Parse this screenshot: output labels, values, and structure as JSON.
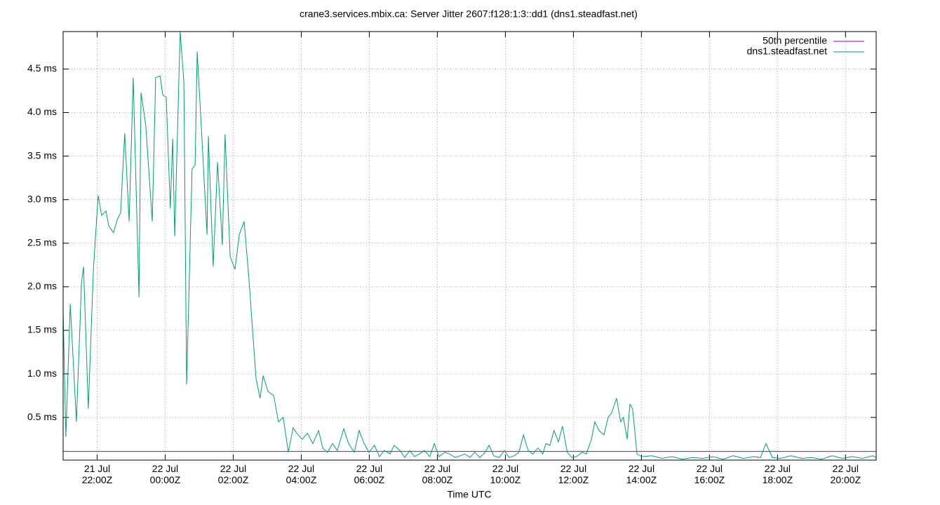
{
  "chart_data": {
    "type": "line",
    "title": "crane3.services.mbix.ca: Server Jitter 2607:f128:1:3::dd1 (dns1.steadfast.net)",
    "xlabel": "Time UTC",
    "xlim": [
      21.0,
      44.9
    ],
    "ylim": [
      0.01,
      4.93
    ],
    "grid": true,
    "legend": "top-right",
    "xticks": [
      {
        "value": 22,
        "label": "21 Jul\n22:00Z"
      },
      {
        "value": 24,
        "label": "22 Jul\n00:00Z"
      },
      {
        "value": 26,
        "label": "22 Jul\n02:00Z"
      },
      {
        "value": 28,
        "label": "22 Jul\n04:00Z"
      },
      {
        "value": 30,
        "label": "22 Jul\n06:00Z"
      },
      {
        "value": 32,
        "label": "22 Jul\n08:00Z"
      },
      {
        "value": 34,
        "label": "22 Jul\n10:00Z"
      },
      {
        "value": 36,
        "label": "22 Jul\n12:00Z"
      },
      {
        "value": 38,
        "label": "22 Jul\n14:00Z"
      },
      {
        "value": 40,
        "label": "22 Jul\n16:00Z"
      },
      {
        "value": 42,
        "label": "22 Jul\n18:00Z"
      },
      {
        "value": 44,
        "label": "22 Jul\n20:00Z"
      }
    ],
    "yticks": [
      {
        "value": 0.5,
        "label": "0.5 ms"
      },
      {
        "value": 1.0,
        "label": "1.0 ms"
      },
      {
        "value": 1.5,
        "label": "1.5 ms"
      },
      {
        "value": 2.0,
        "label": "2.0 ms"
      },
      {
        "value": 2.5,
        "label": "2.5 ms"
      },
      {
        "value": 3.0,
        "label": "3.0 ms"
      },
      {
        "value": 3.5,
        "label": "3.5 ms"
      },
      {
        "value": 4.0,
        "label": "4.0 ms"
      },
      {
        "value": 4.5,
        "label": "4.5 ms"
      }
    ],
    "series": [
      {
        "name": "50th percentile",
        "color": "#9400d3",
        "value": 0.11
      },
      {
        "name": "dns1.steadfast.net",
        "color": "#009e73",
        "x": [
          21.0,
          21.08,
          21.21,
          21.39,
          21.54,
          21.6,
          21.74,
          21.89,
          22.03,
          22.13,
          22.26,
          22.34,
          22.48,
          22.59,
          22.69,
          22.81,
          22.94,
          23.06,
          23.23,
          23.29,
          23.43,
          23.62,
          23.72,
          23.85,
          23.93,
          24.03,
          24.15,
          24.22,
          24.28,
          24.44,
          24.55,
          24.63,
          24.79,
          24.88,
          24.94,
          25.06,
          25.23,
          25.27,
          25.41,
          25.54,
          25.68,
          25.76,
          25.91,
          26.05,
          26.18,
          26.32,
          26.46,
          26.67,
          26.79,
          26.88,
          27.02,
          27.19,
          27.33,
          27.47,
          27.62,
          27.76,
          27.91,
          28.03,
          28.18,
          28.34,
          28.51,
          28.63,
          28.77,
          28.92,
          29.06,
          29.25,
          29.39,
          29.56,
          29.7,
          29.85,
          29.99,
          30.15,
          30.3,
          30.44,
          30.61,
          30.73,
          30.9,
          31.04,
          31.19,
          31.33,
          31.47,
          31.62,
          31.78,
          31.91,
          32.05,
          32.22,
          32.36,
          32.53,
          32.67,
          32.81,
          32.96,
          33.1,
          33.25,
          33.41,
          33.52,
          33.66,
          33.82,
          33.97,
          34.11,
          34.26,
          34.4,
          34.53,
          34.67,
          34.81,
          34.96,
          35.1,
          35.19,
          35.31,
          35.43,
          35.56,
          35.68,
          35.82,
          35.95,
          36.09,
          36.26,
          36.38,
          36.53,
          36.63,
          36.75,
          36.9,
          37.02,
          37.12,
          37.27,
          37.39,
          37.47,
          37.58,
          37.66,
          37.74,
          37.87,
          38.01,
          38.3,
          38.6,
          38.9,
          39.2,
          39.5,
          39.8,
          40.1,
          40.4,
          40.7,
          41.0,
          41.3,
          41.5,
          41.66,
          41.85,
          42.1,
          42.4,
          42.7,
          43.0,
          43.3,
          43.6,
          43.9,
          44.2,
          44.5,
          44.8,
          44.9
        ],
        "values": [
          1.72,
          0.28,
          1.8,
          0.45,
          2.05,
          2.23,
          0.6,
          2.2,
          3.05,
          2.82,
          2.87,
          2.7,
          2.62,
          2.77,
          2.85,
          3.76,
          2.75,
          4.4,
          1.88,
          4.23,
          3.85,
          2.75,
          4.4,
          4.42,
          4.2,
          4.18,
          2.9,
          3.7,
          2.58,
          4.93,
          4.35,
          0.88,
          3.35,
          3.4,
          4.7,
          3.85,
          2.6,
          3.73,
          2.23,
          3.43,
          2.48,
          3.75,
          2.35,
          2.2,
          2.6,
          2.75,
          2.1,
          0.95,
          0.72,
          0.98,
          0.8,
          0.75,
          0.45,
          0.5,
          0.1,
          0.38,
          0.3,
          0.25,
          0.32,
          0.2,
          0.35,
          0.15,
          0.1,
          0.2,
          0.12,
          0.37,
          0.2,
          0.1,
          0.35,
          0.2,
          0.1,
          0.18,
          0.05,
          0.12,
          0.08,
          0.18,
          0.12,
          0.04,
          0.12,
          0.05,
          0.08,
          0.12,
          0.05,
          0.2,
          0.05,
          0.1,
          0.08,
          0.04,
          0.06,
          0.08,
          0.04,
          0.1,
          0.04,
          0.1,
          0.18,
          0.06,
          0.04,
          0.12,
          0.04,
          0.06,
          0.1,
          0.3,
          0.12,
          0.08,
          0.15,
          0.08,
          0.2,
          0.18,
          0.35,
          0.22,
          0.4,
          0.1,
          0.04,
          0.05,
          0.1,
          0.08,
          0.25,
          0.45,
          0.35,
          0.3,
          0.5,
          0.55,
          0.72,
          0.45,
          0.5,
          0.25,
          0.65,
          0.6,
          0.08,
          0.05,
          0.06,
          0.03,
          0.05,
          0.02,
          0.04,
          0.03,
          0.05,
          0.02,
          0.06,
          0.03,
          0.05,
          0.04,
          0.2,
          0.04,
          0.03,
          0.06,
          0.03,
          0.04,
          0.02,
          0.06,
          0.03,
          0.05,
          0.03,
          0.06,
          0.04
        ]
      }
    ]
  }
}
